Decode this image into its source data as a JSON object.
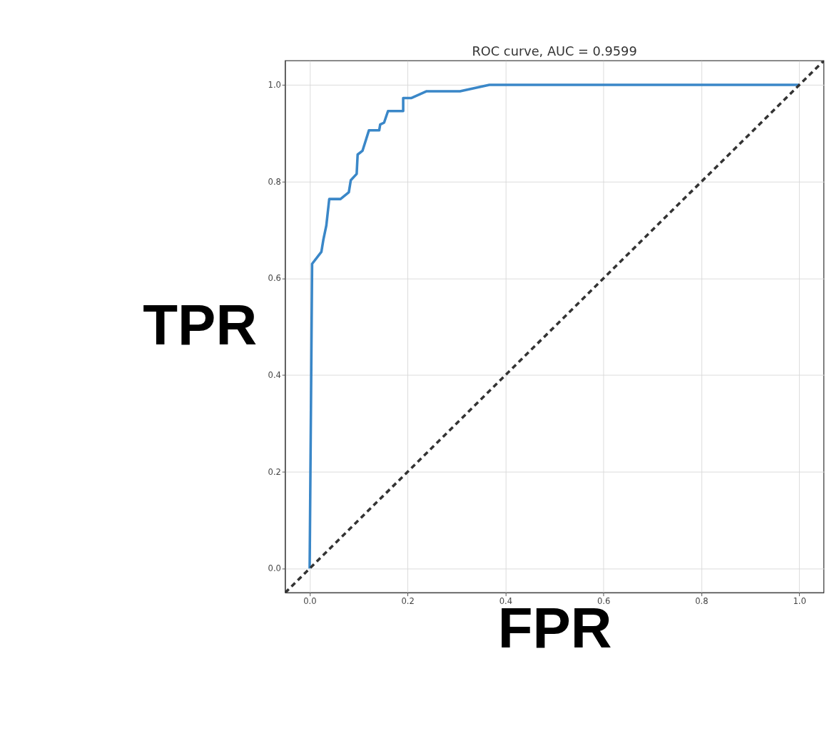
{
  "chart_data": {
    "type": "line",
    "title": "ROC curve, AUC = 0.9599",
    "xlabel": "FPR",
    "ylabel": "TPR",
    "series": [
      {
        "color": "#3a87c8",
        "line_style": "solid",
        "x": [
          0,
          0.005,
          0.024,
          0.028,
          0.034,
          0.04,
          0.063,
          0.08,
          0.084,
          0.096,
          0.098,
          0.108,
          0.121,
          0.142,
          0.144,
          0.152,
          0.16,
          0.191,
          0.191,
          0.208,
          0.239,
          0.307,
          0.367,
          1.0
        ],
        "values": [
          0,
          0.63,
          0.655,
          0.68,
          0.709,
          0.764,
          0.764,
          0.778,
          0.803,
          0.816,
          0.856,
          0.864,
          0.906,
          0.906,
          0.918,
          0.922,
          0.946,
          0.946,
          0.973,
          0.973,
          0.987,
          0.987,
          1.0,
          1.0
        ]
      },
      {
        "color": "#333333",
        "line_style": "dashed",
        "x": [
          -0.05,
          1.05
        ],
        "values": [
          -0.05,
          1.05
        ]
      }
    ],
    "xlim": [
      -0.05,
      1.05
    ],
    "ylim": [
      -0.05,
      1.05
    ],
    "xticks": [
      {
        "value": 0,
        "label": "0.0"
      },
      {
        "value": 0.2,
        "label": "0.2"
      },
      {
        "value": 0.4,
        "label": "0.4"
      },
      {
        "value": 0.6,
        "label": "0.6"
      },
      {
        "value": 0.8,
        "label": "0.8"
      },
      {
        "value": 1,
        "label": "1.0"
      }
    ],
    "yticks": [
      {
        "value": 0,
        "label": "0.0"
      },
      {
        "value": 0.2,
        "label": "0.2"
      },
      {
        "value": 0.4,
        "label": "0.4"
      },
      {
        "value": 0.6,
        "label": "0.6"
      },
      {
        "value": 0.8,
        "label": "0.8"
      },
      {
        "value": 1,
        "label": "1.0"
      }
    ],
    "grid": true,
    "marker": "none"
  }
}
